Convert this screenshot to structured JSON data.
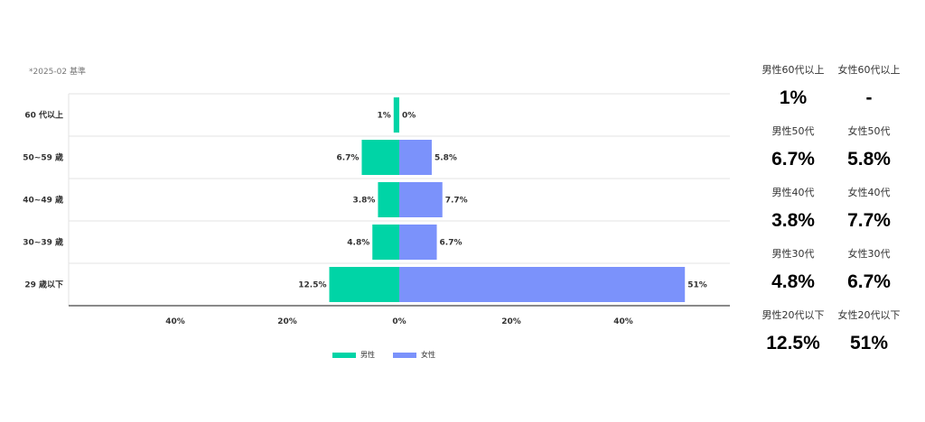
{
  "basis_note": "*2025-02 基準",
  "colors": {
    "male": "#00d4a6",
    "female": "#7b92fb",
    "grid": "#e3e3e3",
    "axis": "#444444"
  },
  "chart_data": {
    "type": "bar",
    "orientation": "horizontal-diverging",
    "categories": [
      "60 代以上",
      "50~59 歳",
      "40~49 歳",
      "30~39 歳",
      "29 歳以下"
    ],
    "series": [
      {
        "name": "男性",
        "values": [
          1,
          6.7,
          3.8,
          4.8,
          12.5
        ],
        "labels": [
          "1%",
          "6.7%",
          "3.8%",
          "4.8%",
          "12.5%"
        ]
      },
      {
        "name": "女性",
        "values": [
          0,
          5.8,
          7.7,
          6.7,
          51
        ],
        "labels": [
          "0%",
          "5.8%",
          "7.7%",
          "6.7%",
          "51%"
        ]
      }
    ],
    "xticks": [
      "40%",
      "20%",
      "0%",
      "20%",
      "40%"
    ],
    "xlim": [
      -60,
      60
    ],
    "legend_position": "bottom",
    "grid": true
  },
  "summary": [
    {
      "left_label": "男性60代以上",
      "left_value": "1%",
      "right_label": "女性60代以上",
      "right_value": "-"
    },
    {
      "left_label": "男性50代",
      "left_value": "6.7%",
      "right_label": "女性50代",
      "right_value": "5.8%"
    },
    {
      "left_label": "男性40代",
      "left_value": "3.8%",
      "right_label": "女性40代",
      "right_value": "7.7%"
    },
    {
      "left_label": "男性30代",
      "left_value": "4.8%",
      "right_label": "女性30代",
      "right_value": "6.7%"
    },
    {
      "left_label": "男性20代以下",
      "left_value": "12.5%",
      "right_label": "女性20代以下",
      "right_value": "51%"
    }
  ]
}
